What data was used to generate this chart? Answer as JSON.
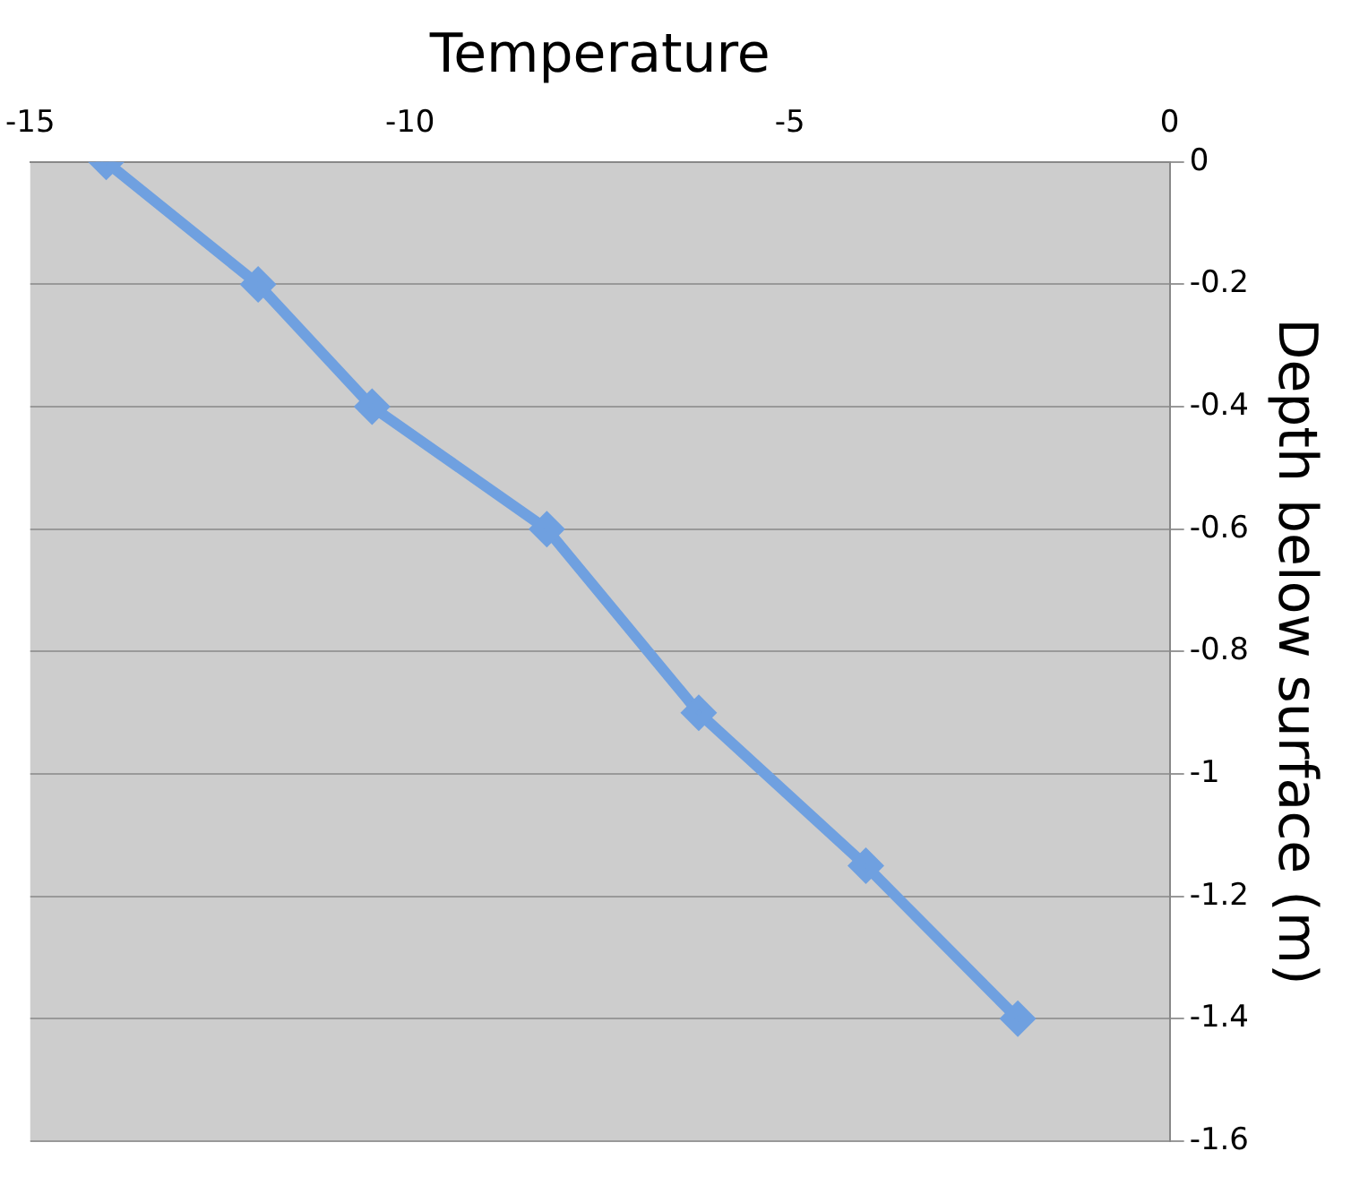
{
  "chart_data": {
    "type": "line",
    "xlabel": "Temperature",
    "ylabel": "Depth below surface (m)",
    "x": [
      -14,
      -12,
      -10.5,
      -8.2,
      -6.2,
      -4,
      -2
    ],
    "series": [
      {
        "color": "#6fa0e0",
        "values": [
          0,
          -0.2,
          -0.4,
          -0.6,
          -0.9,
          -1.15,
          -1.4
        ]
      }
    ],
    "xlim": [
      -15,
      0
    ],
    "xticks": [
      -15,
      -10,
      -5,
      0
    ],
    "ylim": [
      -1.6,
      0
    ],
    "yticks": [
      0,
      -0.2,
      -0.4,
      -0.6,
      -0.8,
      -1,
      -1.2,
      -1.4,
      -1.6
    ],
    "grid": "y",
    "legend": false,
    "marker": "diamond",
    "line_style": "solid"
  }
}
